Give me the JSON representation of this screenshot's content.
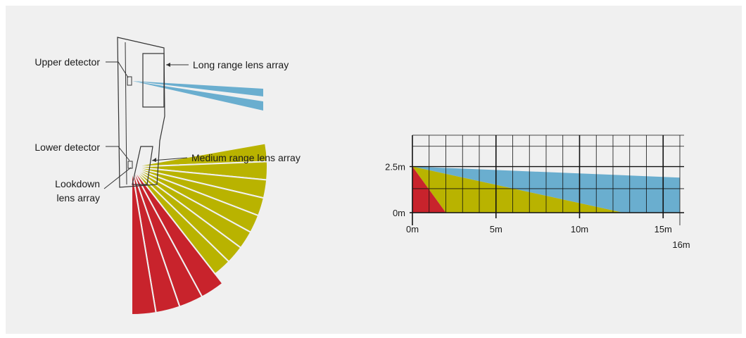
{
  "colors": {
    "background": "#f0f0f0",
    "long_range": "#6aaecf",
    "medium_range": "#b9b300",
    "lookdown": "#c8232c",
    "outline": "#333333",
    "grid": "#111111"
  },
  "sensor_diagram": {
    "labels": {
      "upper_detector": "Upper detector",
      "long_range": "Long range lens array",
      "lower_detector": "Lower detector",
      "medium_range": "Medium range lens array",
      "lookdown_line1": "Lookdown",
      "lookdown_line2": "lens array"
    }
  },
  "chart_data": {
    "type": "area",
    "x_ticks": [
      "0m",
      "5m",
      "10m",
      "15m"
    ],
    "x_end_label": "16m",
    "y_ticks": [
      "0m",
      "2.5m"
    ],
    "xlim": [
      0,
      16
    ],
    "ylim": [
      0,
      4.2
    ],
    "grid": true,
    "series": [
      {
        "color": "#6aaecf",
        "points": [
          [
            0,
            2.5
          ],
          [
            16,
            1.9
          ],
          [
            16,
            0
          ],
          [
            12.6,
            0
          ]
        ]
      },
      {
        "color": "#b9b300",
        "points": [
          [
            0,
            2.5
          ],
          [
            12.6,
            0
          ],
          [
            2,
            0
          ]
        ]
      },
      {
        "color": "#c8232c",
        "points": [
          [
            0,
            2.5
          ],
          [
            2,
            0
          ],
          [
            0,
            0
          ]
        ]
      }
    ]
  }
}
